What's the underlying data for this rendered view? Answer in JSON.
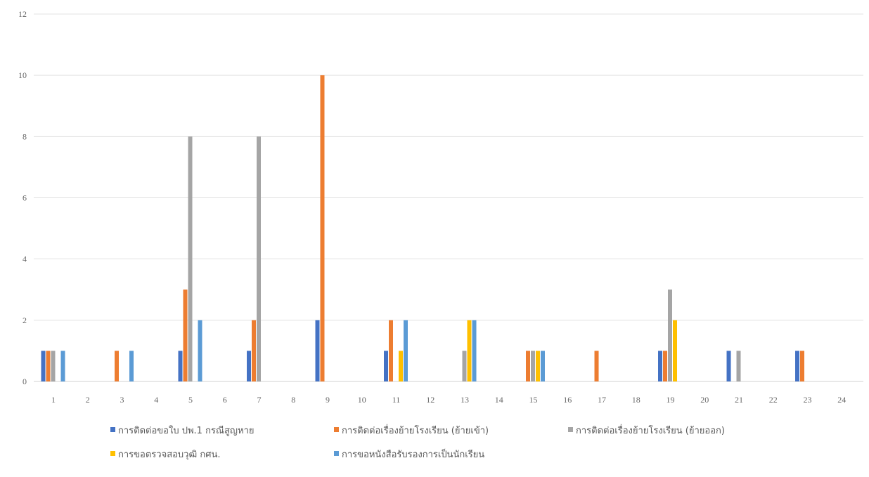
{
  "chart_data": {
    "type": "bar",
    "categories": [
      "1",
      "2",
      "3",
      "4",
      "5",
      "6",
      "7",
      "8",
      "9",
      "10",
      "11",
      "12",
      "13",
      "14",
      "15",
      "16",
      "17",
      "18",
      "19",
      "20",
      "21",
      "22",
      "23",
      "24"
    ],
    "series": [
      {
        "name": "การติดต่อขอใบ ปพ.1 กรณีสูญหาย",
        "color": "#4472C4",
        "values": [
          1,
          0,
          0,
          0,
          1,
          0,
          1,
          0,
          2,
          0,
          1,
          0,
          0,
          0,
          0,
          0,
          0,
          0,
          1,
          0,
          1,
          0,
          1,
          0
        ]
      },
      {
        "name": "การติดต่อเรื่องย้ายโรงเรียน (ย้ายเข้า)",
        "color": "#ED7D31",
        "values": [
          1,
          0,
          1,
          0,
          3,
          0,
          2,
          0,
          10,
          0,
          2,
          0,
          0,
          0,
          1,
          0,
          1,
          0,
          1,
          0,
          0,
          0,
          1,
          0
        ]
      },
      {
        "name": "การติดต่อเรื่องย้ายโรงเรียน (ย้ายออก)",
        "color": "#A5A5A5",
        "values": [
          1,
          0,
          0,
          0,
          8,
          0,
          8,
          0,
          0,
          0,
          0,
          0,
          1,
          0,
          1,
          0,
          0,
          0,
          3,
          0,
          1,
          0,
          0,
          0
        ]
      },
      {
        "name": "การขอตรวจสอบวุฒิ กศน.",
        "color": "#FFC000",
        "values": [
          0,
          0,
          0,
          0,
          0,
          0,
          0,
          0,
          0,
          0,
          1,
          0,
          2,
          0,
          1,
          0,
          0,
          0,
          2,
          0,
          0,
          0,
          0,
          0
        ]
      },
      {
        "name": "การขอหนังสือรับรองการเป็นนักเรียน",
        "color": "#5B9BD5",
        "values": [
          1,
          0,
          1,
          0,
          2,
          0,
          0,
          0,
          0,
          0,
          2,
          0,
          2,
          0,
          1,
          0,
          0,
          0,
          0,
          0,
          0,
          0,
          0,
          0
        ]
      }
    ],
    "ylim": [
      0,
      12
    ],
    "yticks": [
      0,
      2,
      4,
      6,
      8,
      10,
      12
    ],
    "grid": true,
    "legend_position": "bottom",
    "title": "",
    "xlabel": "",
    "ylabel": ""
  }
}
